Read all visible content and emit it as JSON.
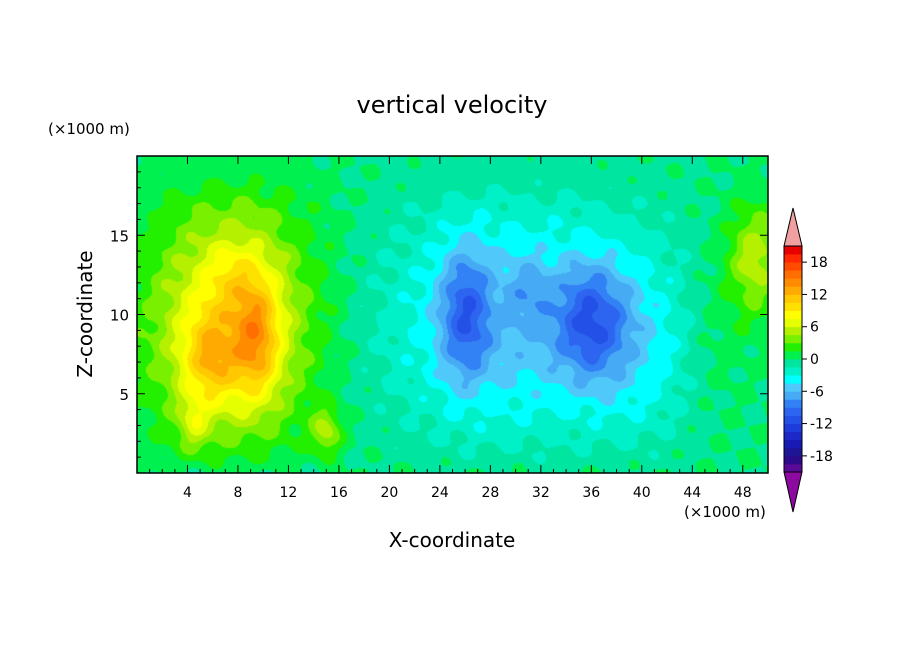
{
  "chart_data": {
    "type": "heatmap",
    "title": "vertical velocity",
    "xlabel": "X-coordinate",
    "ylabel": "Z-coordinate",
    "x_unit": "(×1000 m)",
    "y_unit": "(×1000 m)",
    "xlim": [
      0,
      50
    ],
    "ylim": [
      0,
      20
    ],
    "x_ticks": [
      4,
      8,
      12,
      16,
      20,
      24,
      28,
      32,
      36,
      40,
      44,
      48
    ],
    "y_ticks": [
      5,
      10,
      15
    ],
    "grid": false,
    "colorbar": {
      "position": "right",
      "levels": [
        -21,
        -19.5,
        -18,
        -16.5,
        -15,
        -13.5,
        -12,
        -10.5,
        -9,
        -7.5,
        -6,
        -4.5,
        -3,
        -1.5,
        0,
        1.5,
        3,
        4.5,
        6,
        7.5,
        9,
        10.5,
        12,
        13.5,
        15,
        16.5,
        18,
        19.5,
        21
      ],
      "tick_labels": [
        "-18",
        "-12",
        "-6",
        "0",
        "6",
        "12",
        "18"
      ],
      "tick_values": [
        -18,
        -12,
        -6,
        0,
        6,
        12,
        18
      ],
      "colors": [
        "#5a0a96",
        "#2d0a8c",
        "#1e1496",
        "#1919b4",
        "#1e28c8",
        "#1e3cdc",
        "#2350e6",
        "#2d64f0",
        "#3282f5",
        "#46aaf5",
        "#50c8fa",
        "#00ffff",
        "#00f0c8",
        "#00e6a0",
        "#00f050",
        "#23f000",
        "#78f000",
        "#b4f000",
        "#e6ff00",
        "#ffff00",
        "#ffe100",
        "#ffc800",
        "#ffaa00",
        "#ff8c00",
        "#ff6e00",
        "#ff4b00",
        "#ff2800",
        "#e60000"
      ],
      "over_color": "#f0a0a0",
      "under_color": "#8c0aa0"
    },
    "features": [
      {
        "kind": "updraft",
        "x": 9.5,
        "z": 8.5,
        "w_max": 16.5
      },
      {
        "kind": "updraft",
        "x": 5.5,
        "z": 7.0,
        "w_max": 13.5
      },
      {
        "kind": "updraft",
        "x": 48.5,
        "z": 13.5,
        "w_max": 4.5
      },
      {
        "kind": "downdraft",
        "x": 26.0,
        "z": 10.0,
        "w_min": -12.0
      },
      {
        "kind": "downdraft",
        "x": 36.0,
        "z": 9.5,
        "w_min": -12.0
      },
      {
        "kind": "downdraft",
        "x": 31.0,
        "z": 11.5,
        "w_min": -7.5
      }
    ]
  }
}
